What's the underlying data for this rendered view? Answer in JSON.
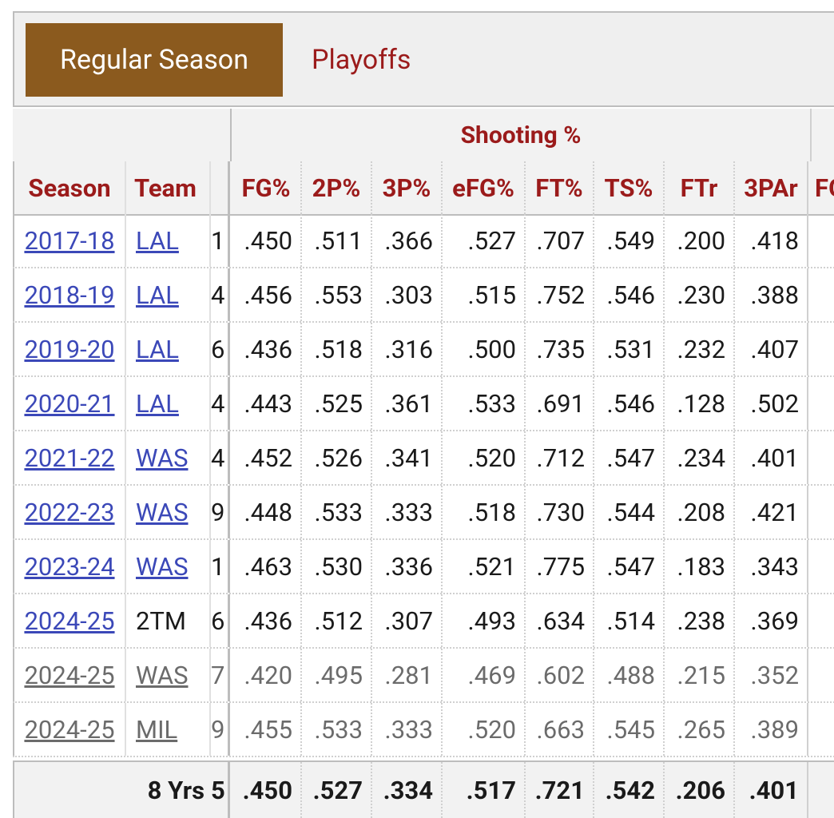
{
  "tabs": {
    "active": "Regular Season",
    "inactive": "Playoffs"
  },
  "group_header": "Shooting %",
  "columns": {
    "season": "Season",
    "team": "Team",
    "fg": "FG%",
    "p2": "2P%",
    "p3": "3P%",
    "efg": "eFG%",
    "ft": "FT%",
    "ts": "TS%",
    "ftr": "FTr",
    "p3ar": "3PAr",
    "cut": "FG"
  },
  "rows": [
    {
      "season": "2017-18",
      "team": "LAL",
      "frozen": "1",
      "fg": ".450",
      "p2": ".511",
      "p3": ".366",
      "efg": ".527",
      "ft": ".707",
      "ts": ".549",
      "ftr": ".200",
      "p3ar": ".418"
    },
    {
      "season": "2018-19",
      "team": "LAL",
      "frozen": "4",
      "fg": ".456",
      "p2": ".553",
      "p3": ".303",
      "efg": ".515",
      "ft": ".752",
      "ts": ".546",
      "ftr": ".230",
      "p3ar": ".388"
    },
    {
      "season": "2019-20",
      "team": "LAL",
      "frozen": "6",
      "fg": ".436",
      "p2": ".518",
      "p3": ".316",
      "efg": ".500",
      "ft": ".735",
      "ts": ".531",
      "ftr": ".232",
      "p3ar": ".407"
    },
    {
      "season": "2020-21",
      "team": "LAL",
      "frozen": "4",
      "fg": ".443",
      "p2": ".525",
      "p3": ".361",
      "efg": ".533",
      "ft": ".691",
      "ts": ".546",
      "ftr": ".128",
      "p3ar": ".502"
    },
    {
      "season": "2021-22",
      "team": "WAS",
      "frozen": "4",
      "fg": ".452",
      "p2": ".526",
      "p3": ".341",
      "efg": ".520",
      "ft": ".712",
      "ts": ".547",
      "ftr": ".234",
      "p3ar": ".401"
    },
    {
      "season": "2022-23",
      "team": "WAS",
      "frozen": "9",
      "fg": ".448",
      "p2": ".533",
      "p3": ".333",
      "efg": ".518",
      "ft": ".730",
      "ts": ".544",
      "ftr": ".208",
      "p3ar": ".421"
    },
    {
      "season": "2023-24",
      "team": "WAS",
      "frozen": "1",
      "fg": ".463",
      "p2": ".530",
      "p3": ".336",
      "efg": ".521",
      "ft": ".775",
      "ts": ".547",
      "ftr": ".183",
      "p3ar": ".343"
    },
    {
      "season": "2024-25",
      "team": "2TM",
      "frozen": "6",
      "fg": ".436",
      "p2": ".512",
      "p3": ".307",
      "efg": ".493",
      "ft": ".634",
      "ts": ".514",
      "ftr": ".238",
      "p3ar": ".369"
    },
    {
      "season": "2024-25",
      "team": "WAS",
      "frozen": "7",
      "fg": ".420",
      "p2": ".495",
      "p3": ".281",
      "efg": ".469",
      "ft": ".602",
      "ts": ".488",
      "ftr": ".215",
      "p3ar": ".352"
    },
    {
      "season": "2024-25",
      "team": "MIL",
      "frozen": "9",
      "fg": ".455",
      "p2": ".533",
      "p3": ".333",
      "efg": ".520",
      "ft": ".663",
      "ts": ".545",
      "ftr": ".265",
      "p3ar": ".389"
    }
  ],
  "total": {
    "label": "8 Yrs",
    "frozen": "5",
    "fg": ".450",
    "p2": ".527",
    "p3": ".334",
    "efg": ".517",
    "ft": ".721",
    "ts": ".542",
    "ftr": ".206",
    "p3ar": ".401"
  }
}
